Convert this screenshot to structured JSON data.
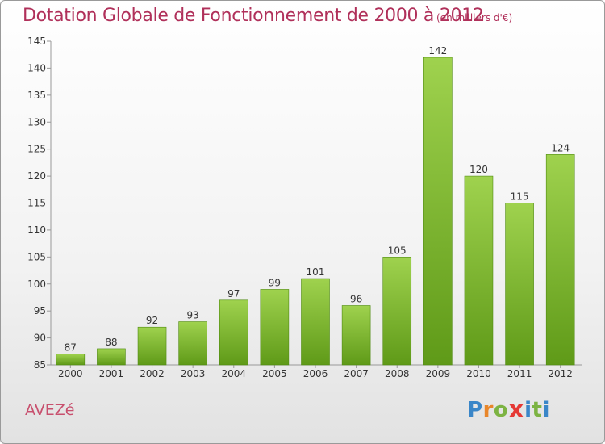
{
  "title": "Dotation Globale de Fonctionnement de 2000 à 2012",
  "unit_note": "(en milliers d'€)",
  "commune": "AVEZé",
  "logo": {
    "text": "Proxiti",
    "letters": [
      {
        "ch": "P",
        "color": "#3a86c8"
      },
      {
        "ch": "r",
        "color": "#e8862a"
      },
      {
        "ch": "o",
        "color": "#7cb342"
      },
      {
        "ch": "x",
        "color": "#e53935"
      },
      {
        "ch": "i",
        "color": "#3a86c8"
      },
      {
        "ch": "t",
        "color": "#7cb342"
      },
      {
        "ch": "i",
        "color": "#3a86c8"
      }
    ]
  },
  "chart_data": {
    "type": "bar",
    "categories": [
      "2000",
      "2001",
      "2002",
      "2003",
      "2004",
      "2005",
      "2006",
      "2007",
      "2008",
      "2009",
      "2010",
      "2011",
      "2012"
    ],
    "values": [
      87,
      88,
      92,
      93,
      97,
      99,
      101,
      96,
      105,
      142,
      120,
      115,
      124
    ],
    "ylim": [
      85,
      145
    ],
    "yticks": [
      85,
      90,
      95,
      100,
      105,
      110,
      115,
      120,
      125,
      130,
      135,
      140,
      145
    ],
    "grid": false,
    "bar_color_top": "#9fd24e",
    "bar_color_bottom": "#5f9a18"
  }
}
